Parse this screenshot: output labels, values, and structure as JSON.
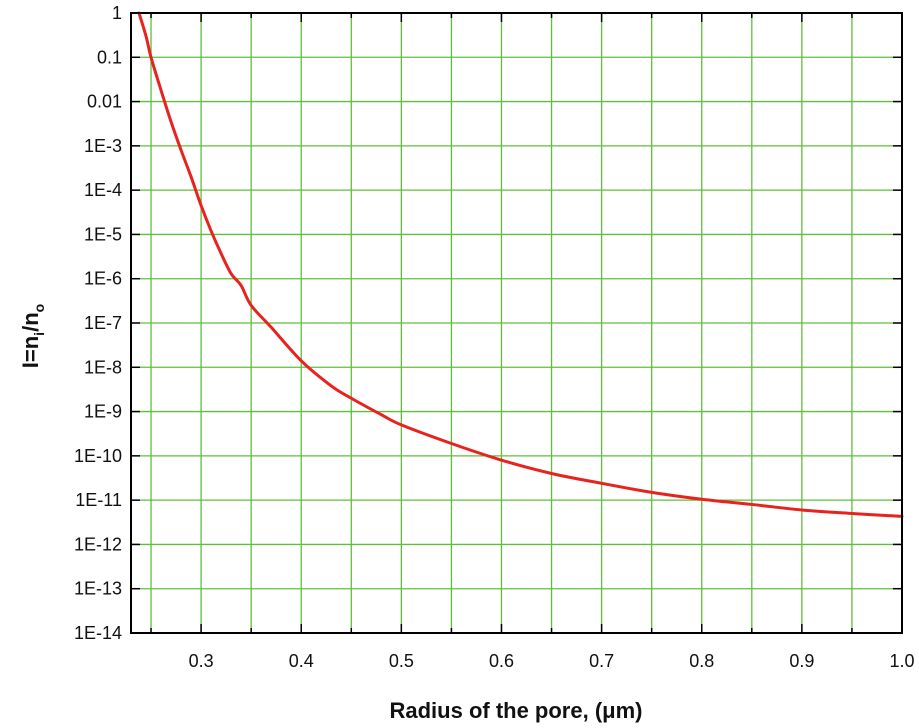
{
  "chart_data": {
    "type": "line",
    "xlabel": "Radius of the pore, (μm)",
    "ylabel": {
      "base": "I=n",
      "sub1": "i",
      "mid": "/n",
      "sub2": "o"
    },
    "xlim": [
      0.23,
      1.0
    ],
    "ylim": [
      1e-14,
      1
    ],
    "yscale": "log",
    "grid": true,
    "colors": {
      "series": "#e8231f",
      "grid": "#5fbf3a",
      "axis": "#000000"
    },
    "x_ticks": [
      {
        "v": 0.3,
        "label": "0.3"
      },
      {
        "v": 0.4,
        "label": "0.4"
      },
      {
        "v": 0.5,
        "label": "0.5"
      },
      {
        "v": 0.6,
        "label": "0.6"
      },
      {
        "v": 0.7,
        "label": "0.7"
      },
      {
        "v": 0.8,
        "label": "0.8"
      },
      {
        "v": 0.9,
        "label": "0.9"
      },
      {
        "v": 1.0,
        "label": "1.0"
      }
    ],
    "y_ticks": [
      {
        "v": 1,
        "label": "1"
      },
      {
        "v": 0.1,
        "label": "0.1"
      },
      {
        "v": 0.01,
        "label": "0.01"
      },
      {
        "v": 0.001,
        "label": "1E-3"
      },
      {
        "v": 0.0001,
        "label": "1E-4"
      },
      {
        "v": 1e-05,
        "label": "1E-5"
      },
      {
        "v": 1e-06,
        "label": "1E-6"
      },
      {
        "v": 1e-07,
        "label": "1E-7"
      },
      {
        "v": 1e-08,
        "label": "1E-8"
      },
      {
        "v": 1e-09,
        "label": "1E-9"
      },
      {
        "v": 1e-10,
        "label": "1E-10"
      },
      {
        "v": 1e-11,
        "label": "1E-11"
      },
      {
        "v": 1e-12,
        "label": "1E-12"
      },
      {
        "v": 1e-13,
        "label": "1E-13"
      },
      {
        "v": 1e-14,
        "label": "1E-14"
      }
    ],
    "series": [
      {
        "x": [
          0.238,
          0.245,
          0.25,
          0.26,
          0.27,
          0.28,
          0.29,
          0.3,
          0.31,
          0.32,
          0.33,
          0.34,
          0.35,
          0.37,
          0.4,
          0.43,
          0.45,
          0.48,
          0.5,
          0.55,
          0.6,
          0.65,
          0.7,
          0.75,
          0.8,
          0.85,
          0.9,
          0.95,
          1.0
        ],
        "y": [
          1.0,
          0.3,
          0.1,
          0.018,
          0.0035,
          0.0008,
          0.0002,
          4.5e-05,
          1.2e-05,
          3.7e-06,
          1.3e-06,
          7e-07,
          2.5e-07,
          8e-08,
          1.4e-08,
          3.8e-09,
          2e-09,
          8.5e-10,
          5e-10,
          1.9e-10,
          8e-11,
          4e-11,
          2.4e-11,
          1.5e-11,
          1.05e-11,
          8e-12,
          6e-12,
          5e-12,
          4.3e-12
        ]
      }
    ]
  }
}
